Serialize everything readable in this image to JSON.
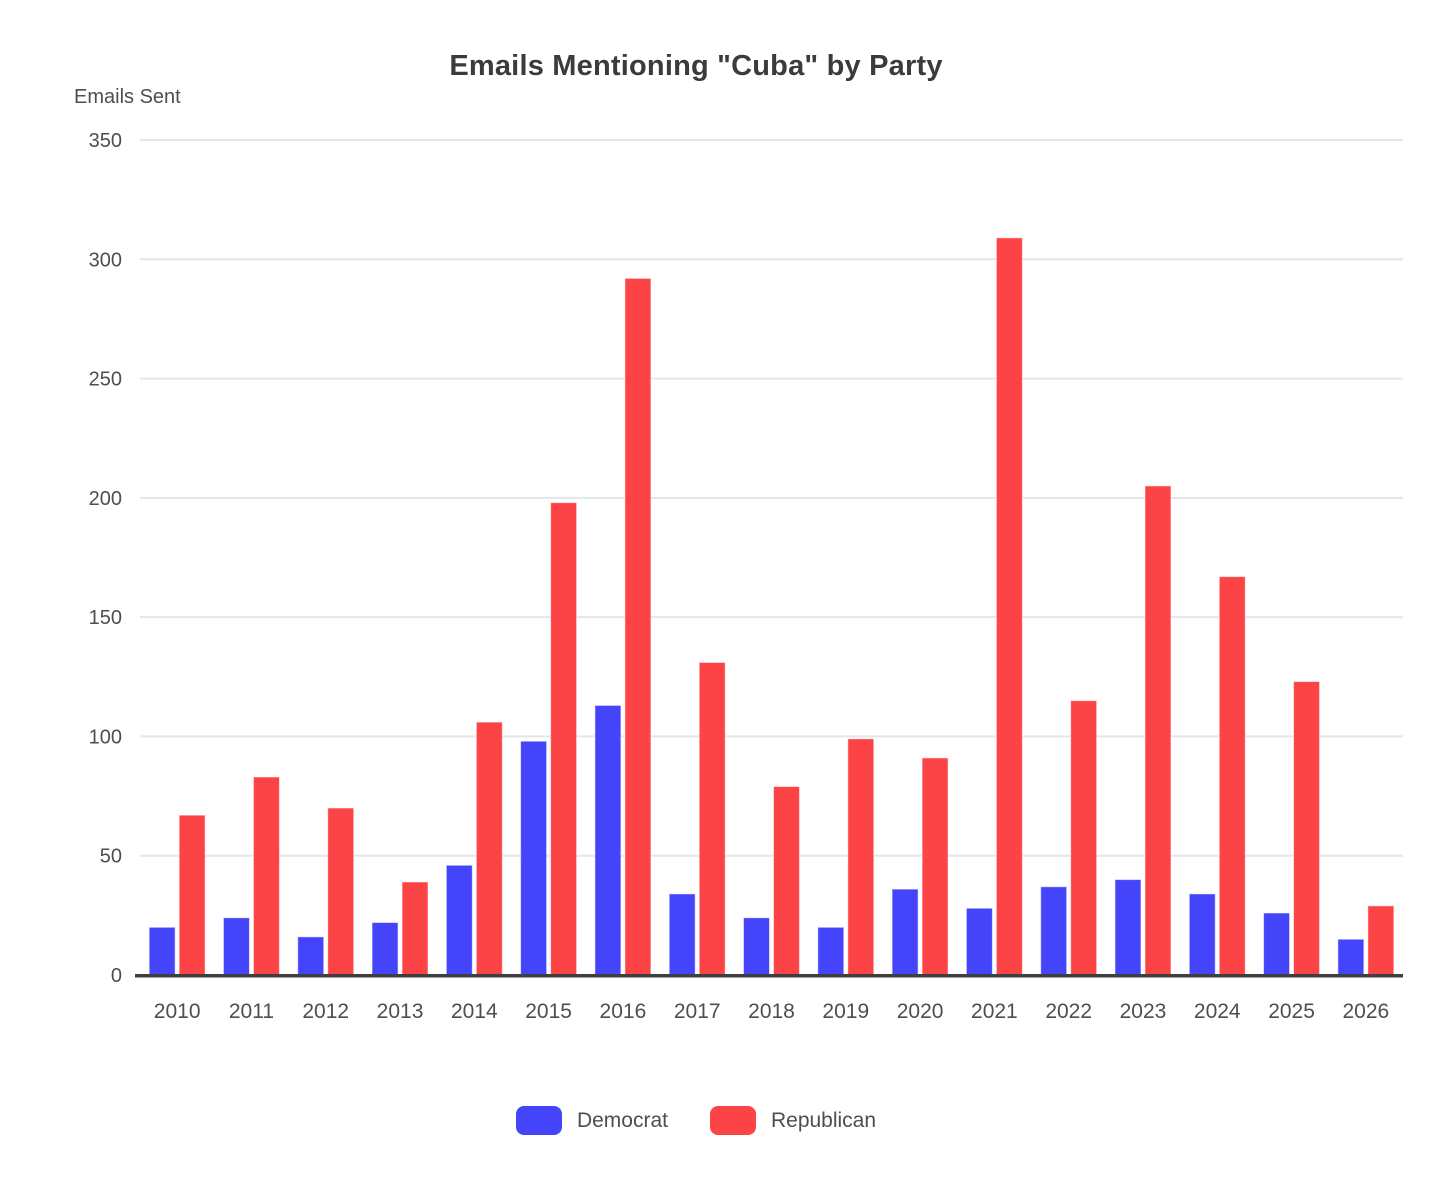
{
  "title": "Emails Mentioning \"Cuba\" by Party",
  "chart_data": {
    "type": "bar",
    "title": "Emails Mentioning \"Cuba\" by Party",
    "xlabel": "",
    "ylabel": "Emails Sent",
    "categories": [
      "2010",
      "2011",
      "2012",
      "2013",
      "2014",
      "2015",
      "2016",
      "2017",
      "2018",
      "2019",
      "2020",
      "2021",
      "2022",
      "2023",
      "2024",
      "2025",
      "2026"
    ],
    "series": [
      {
        "name": "Democrat",
        "color": "#4444fa",
        "values": [
          20,
          24,
          16,
          22,
          46,
          98,
          113,
          34,
          24,
          20,
          36,
          28,
          37,
          40,
          34,
          26,
          15
        ]
      },
      {
        "name": "Republican",
        "color": "#fc4345",
        "values": [
          67,
          83,
          70,
          39,
          106,
          198,
          292,
          131,
          79,
          99,
          91,
          309,
          115,
          205,
          167,
          123,
          29
        ]
      }
    ],
    "ylim": [
      0,
      350
    ],
    "y_ticks": [
      0,
      50,
      100,
      150,
      200,
      250,
      300,
      350
    ],
    "grid": true,
    "legend_position": "bottom"
  },
  "colors": {
    "gridline": "#e3e6ed",
    "axis_line": "#3f3f3f",
    "tick_text": "#4e4e4e",
    "title_text": "#3b3b3b",
    "background": "#ffffff"
  }
}
